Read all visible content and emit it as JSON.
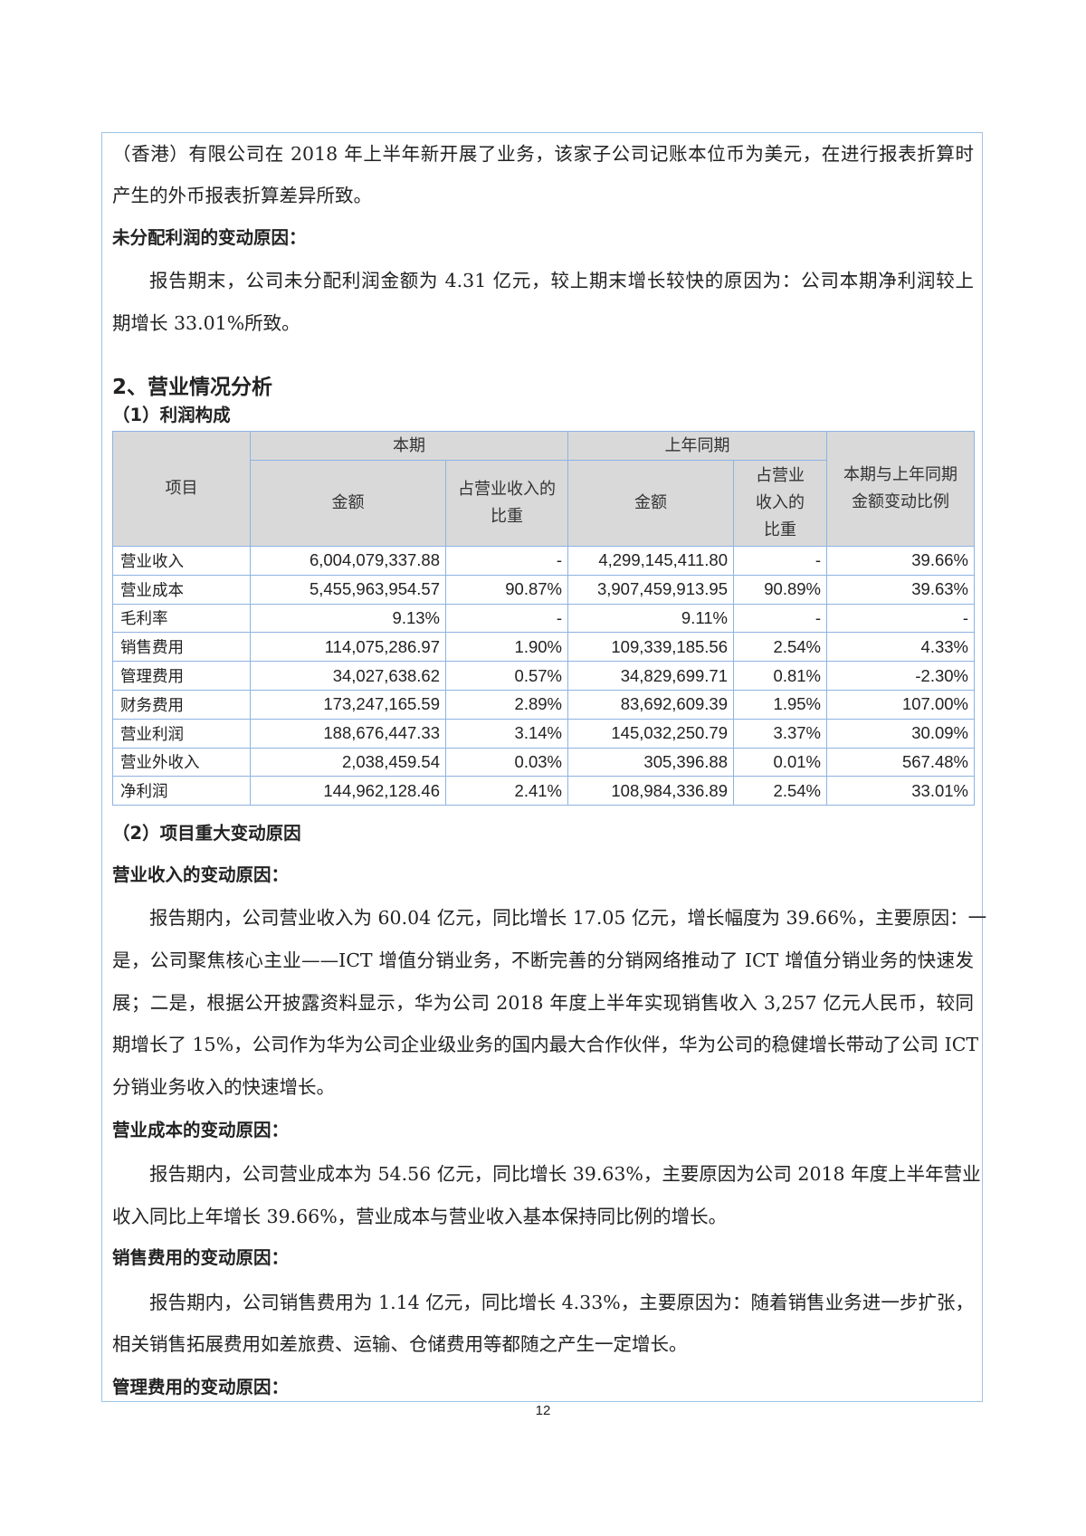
{
  "paragraphs_top": [
    "（香港）有限公司在 2018 年上半年新开展了业务，该家子公司记账本位币为美元，在进行报表折算时",
    "产生的外币报表折算差异所致。"
  ],
  "undistributed": {
    "heading": "未分配利润的变动原因：",
    "lines": [
      "报告期末，公司未分配利润金额为 4.31 亿元，较上期末增长较快的原因为：公司本期净利润较上",
      "期增长 33.01%所致。"
    ]
  },
  "section_title": "2、营业情况分析",
  "subsection1": "（1）利润构成",
  "table": {
    "headers": {
      "item": "项目",
      "current": "本期",
      "prior": "上年同期",
      "change": "本期与上年同期金额变动比例",
      "amount": "金额",
      "ratio_current": "占营业收入的比重",
      "ratio_prior": "占营业收入的比重"
    },
    "rows": [
      [
        "营业收入",
        "6,004,079,337.88",
        "-",
        "4,299,145,411.80",
        "-",
        "39.66%"
      ],
      [
        "营业成本",
        "5,455,963,954.57",
        "90.87%",
        "3,907,459,913.95",
        "90.89%",
        "39.63%"
      ],
      [
        "毛利率",
        "9.13%",
        "-",
        "9.11%",
        "-",
        "-"
      ],
      [
        "销售费用",
        "114,075,286.97",
        "1.90%",
        "109,339,185.56",
        "2.54%",
        "4.33%"
      ],
      [
        "管理费用",
        "34,027,638.62",
        "0.57%",
        "34,829,699.71",
        "0.81%",
        "-2.30%"
      ],
      [
        "财务费用",
        "173,247,165.59",
        "2.89%",
        "83,692,609.39",
        "1.95%",
        "107.00%"
      ],
      [
        "营业利润",
        "188,676,447.33",
        "3.14%",
        "145,032,250.79",
        "3.37%",
        "30.09%"
      ],
      [
        "营业外收入",
        "2,038,459.54",
        "0.03%",
        "305,396.88",
        "0.01%",
        "567.48%"
      ],
      [
        "净利润",
        "144,962,128.46",
        "2.41%",
        "108,984,336.89",
        "2.54%",
        "33.01%"
      ]
    ]
  },
  "subsection2": "（2）项目重大变动原因",
  "revenue": {
    "heading": "营业收入的变动原因：",
    "lines": [
      "报告期内，公司营业收入为 60.04 亿元，同比增长 17.05 亿元，增长幅度为 39.66%，主要原因：一",
      "是，公司聚焦核心主业——ICT 增值分销业务，不断完善的分销网络推动了 ICT 增值分销业务的快速发",
      "展；二是，根据公开披露资料显示，华为公司 2018 年度上半年实现销售收入 3,257 亿元人民币，较同",
      "期增长了 15%，公司作为华为公司企业级业务的国内最大合作伙伴，华为公司的稳健增长带动了公司 ICT",
      "分销业务收入的快速增长。"
    ]
  },
  "cost": {
    "heading": "营业成本的变动原因：",
    "lines": [
      "报告期内，公司营业成本为 54.56 亿元，同比增长 39.63%，主要原因为公司 2018 年度上半年营业",
      "收入同比上年增长 39.66%，营业成本与营业收入基本保持同比例的增长。"
    ]
  },
  "selling": {
    "heading": "销售费用的变动原因：",
    "lines": [
      "报告期内，公司销售费用为 1.14 亿元，同比增长 4.33%，主要原因为：随着销售业务进一步扩张，",
      "相关销售拓展费用如差旅费、运输、仓储费用等都随之产生一定增长。"
    ]
  },
  "admin": {
    "heading": "管理费用的变动原因："
  },
  "page_number": "12"
}
